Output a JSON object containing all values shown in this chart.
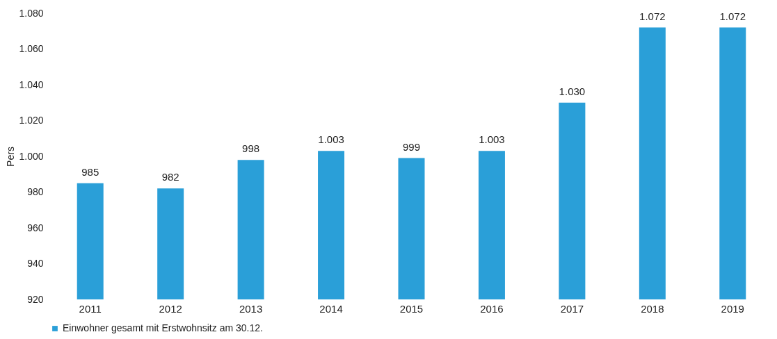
{
  "chart_data": {
    "type": "bar",
    "ylabel": "Pers",
    "categories": [
      "2011",
      "2012",
      "2013",
      "2014",
      "2015",
      "2016",
      "2017",
      "2018",
      "2019"
    ],
    "series": [
      {
        "name": "Einwohner gesamt mit Erstwohnsitz am 30.12.",
        "color": "#2a9fd8",
        "values": [
          985,
          982,
          998,
          1003,
          999,
          1003,
          1030,
          1072,
          1072
        ],
        "value_labels": [
          "985",
          "982",
          "998",
          "1.003",
          "999",
          "1.003",
          "1.030",
          "1.072",
          "1.072"
        ]
      }
    ],
    "ylim": [
      920,
      1080
    ],
    "yticks": [
      920,
      940,
      960,
      980,
      {
        "value": 1000,
        "label": "1.000"
      },
      {
        "value": 1020,
        "label": "1.020"
      },
      {
        "value": 1040,
        "label": "1.040"
      },
      {
        "value": 1060,
        "label": "1.060"
      },
      {
        "value": 1080,
        "label": "1.080"
      }
    ],
    "grid": false,
    "legend": "bottom"
  }
}
